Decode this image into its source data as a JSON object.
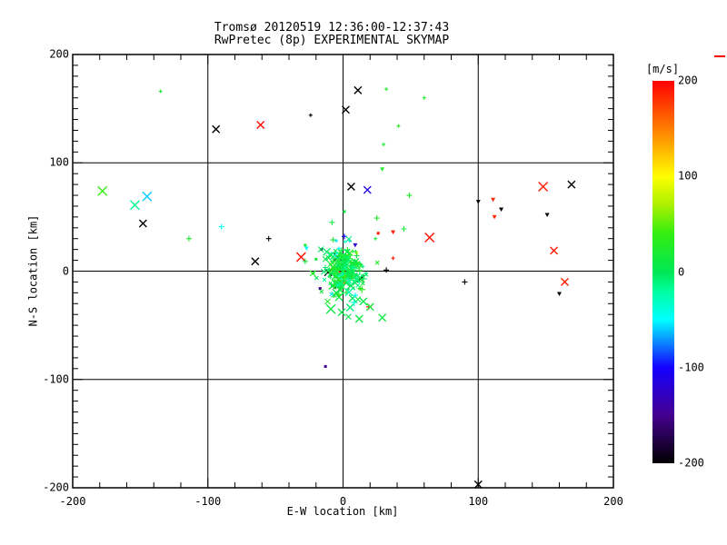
{
  "figure": {
    "title_line1": "Tromsø 20120519 12:36:00-12:37:43",
    "title_line2": "RwPretec (8p) EXPERIMENTAL SKYMAP",
    "background": "#FFFFFF",
    "axis_color": "#000000",
    "stray_dash_color": "#FF0000"
  },
  "chart_data": {
    "type": "scatter",
    "title": "Tromsø 20120519 12:36:00-12:37:43",
    "subtitle": "RwPretec (8p) EXPERIMENTAL SKYMAP",
    "xlabel": "E-W location [km]",
    "ylabel": "N-S location [km]",
    "xlim": [
      -200,
      200
    ],
    "ylim": [
      -200,
      200
    ],
    "xtick_labels": [
      "-200",
      "-100",
      "0",
      "100",
      "200"
    ],
    "ytick_labels": [
      "200",
      "100",
      "0",
      "-100",
      "-200"
    ],
    "xticks_major": [
      -200,
      -100,
      0,
      100,
      200
    ],
    "yticks_major": [
      200,
      100,
      0,
      -100,
      -200
    ],
    "x_minor_step": 20,
    "y_minor_step": 10,
    "grid_values": [
      -100,
      0,
      100
    ],
    "grid_on": true,
    "legend_position": "right-colorbar",
    "colorbar": {
      "label": "[m/s]",
      "ticks": [
        200,
        100,
        0,
        -100,
        -200
      ],
      "range": [
        -200,
        200
      ],
      "stops": [
        [
          -200,
          "#000000"
        ],
        [
          -150,
          "#45008F"
        ],
        [
          -100,
          "#1400FF"
        ],
        [
          -50,
          "#00FFFF"
        ],
        [
          -20,
          "#00FFA0"
        ],
        [
          0,
          "#00E756"
        ],
        [
          40,
          "#33EE11"
        ],
        [
          70,
          "#AAF000"
        ],
        [
          100,
          "#FFFF00"
        ],
        [
          150,
          "#FF7D00"
        ],
        [
          200,
          "#FF0000"
        ]
      ]
    },
    "points_format": "[x_km, y_km, velocity_m_s, shape(x=cross,p=plus,d=dot,t=triangle), half_size_px]",
    "points": [
      [
        -135,
        166,
        20,
        "p",
        2
      ],
      [
        -94,
        131,
        -200,
        "x",
        4
      ],
      [
        -61,
        135,
        195,
        "x",
        4
      ],
      [
        -24,
        144,
        -200,
        "p",
        2
      ],
      [
        11,
        167,
        -200,
        "x",
        4
      ],
      [
        2,
        149,
        -200,
        "x",
        4
      ],
      [
        32,
        168,
        25,
        "p",
        2
      ],
      [
        60,
        160,
        25,
        "p",
        2
      ],
      [
        41,
        134,
        30,
        "p",
        2
      ],
      [
        30,
        117,
        20,
        "p",
        2
      ],
      [
        29,
        94,
        25,
        "t",
        2
      ],
      [
        -178,
        74,
        40,
        "x",
        5
      ],
      [
        -145,
        69,
        -60,
        "x",
        5
      ],
      [
        -154,
        61,
        -15,
        "x",
        5
      ],
      [
        -148,
        44,
        -200,
        "x",
        4
      ],
      [
        -114,
        30,
        20,
        "p",
        3
      ],
      [
        -90,
        41,
        -50,
        "p",
        3
      ],
      [
        -55,
        30,
        -200,
        "p",
        3
      ],
      [
        -31,
        13,
        195,
        "x",
        5
      ],
      [
        -65,
        9,
        -200,
        "x",
        4
      ],
      [
        6,
        78,
        -200,
        "x",
        4
      ],
      [
        18,
        75,
        -110,
        "x",
        4
      ],
      [
        49,
        70,
        25,
        "p",
        3
      ],
      [
        100,
        64,
        -200,
        "t",
        2
      ],
      [
        111,
        66,
        185,
        "t",
        2
      ],
      [
        117,
        57,
        -200,
        "t",
        2
      ],
      [
        112,
        50,
        185,
        "t",
        2
      ],
      [
        151,
        52,
        -200,
        "t",
        2
      ],
      [
        148,
        78,
        190,
        "x",
        5
      ],
      [
        169,
        80,
        -200,
        "x",
        4
      ],
      [
        156,
        19,
        190,
        "x",
        4
      ],
      [
        164,
        -10,
        190,
        "x",
        4
      ],
      [
        160,
        -21,
        -200,
        "t",
        2
      ],
      [
        90,
        -10,
        -200,
        "p",
        3
      ],
      [
        100,
        -197,
        -200,
        "x",
        4
      ],
      [
        64,
        31,
        195,
        "x",
        5
      ],
      [
        45,
        39,
        20,
        "p",
        3
      ],
      [
        25,
        49,
        25,
        "p",
        3
      ],
      [
        26,
        35,
        190,
        "d",
        2
      ],
      [
        37,
        36,
        190,
        "t",
        2
      ],
      [
        24,
        30,
        20,
        "p",
        2
      ],
      [
        37,
        12,
        190,
        "p",
        2
      ],
      [
        32,
        1,
        -200,
        "p",
        3
      ],
      [
        -28,
        24,
        20,
        "d",
        2
      ],
      [
        -27,
        21,
        -50,
        "t",
        2
      ],
      [
        -28,
        9,
        10,
        "p",
        3
      ],
      [
        -20,
        11,
        15,
        "d",
        2
      ],
      [
        -22,
        -2,
        10,
        "d",
        2
      ],
      [
        -13,
        -88,
        -150,
        "d",
        2
      ],
      [
        1,
        55,
        10,
        "d",
        2
      ],
      [
        10,
        17,
        95,
        "d",
        2
      ],
      [
        1,
        32,
        -100,
        "p",
        3
      ],
      [
        -5,
        28,
        -55,
        "p",
        2
      ],
      [
        5,
        28,
        -60,
        "p",
        2
      ],
      [
        9,
        24,
        -120,
        "t",
        2
      ],
      [
        -3,
        21,
        -50,
        "p",
        2
      ],
      [
        -2,
        16,
        -45,
        "p",
        2
      ],
      [
        -16,
        20,
        -160,
        "d",
        2
      ],
      [
        -17,
        -16,
        -155,
        "d",
        2
      ],
      [
        -4,
        13,
        -200,
        "x",
        4
      ],
      [
        -11,
        -1,
        -200,
        "x",
        4
      ],
      [
        13,
        -7,
        -200,
        "x",
        4
      ],
      [
        0,
        -4,
        200,
        "x",
        5
      ],
      [
        1,
        -11,
        150,
        "p",
        3
      ],
      [
        19,
        -33,
        190,
        "p",
        3
      ],
      [
        -6,
        -15,
        -200,
        "d",
        2
      ],
      [
        -3,
        -9,
        140,
        "d",
        2
      ],
      [
        -5,
        -20,
        5,
        "x",
        4
      ],
      [
        -3,
        -24,
        10,
        "x",
        4
      ],
      [
        7,
        -25,
        0,
        "x",
        4
      ],
      [
        11,
        -26,
        10,
        "x",
        3
      ],
      [
        15,
        -28,
        5,
        "x",
        4
      ],
      [
        -9,
        -35,
        10,
        "x",
        5
      ],
      [
        -1,
        -38,
        5,
        "x",
        4
      ],
      [
        12,
        -44,
        10,
        "x",
        4
      ],
      [
        4,
        -42,
        5,
        "x",
        3
      ],
      [
        29,
        -43,
        10,
        "x",
        4
      ],
      [
        20,
        -33,
        15,
        "x",
        4
      ]
    ],
    "cluster": {
      "comment": "dense unresolved blob of echoes at origin",
      "count": 215,
      "center": [
        0,
        0
      ],
      "sigma_x_km": 7.5,
      "sigma_y_km": 10.5,
      "velocity_mean": 8,
      "velocity_sd": 15,
      "cyan_fraction": 0.1,
      "seed": 20120519
    }
  }
}
